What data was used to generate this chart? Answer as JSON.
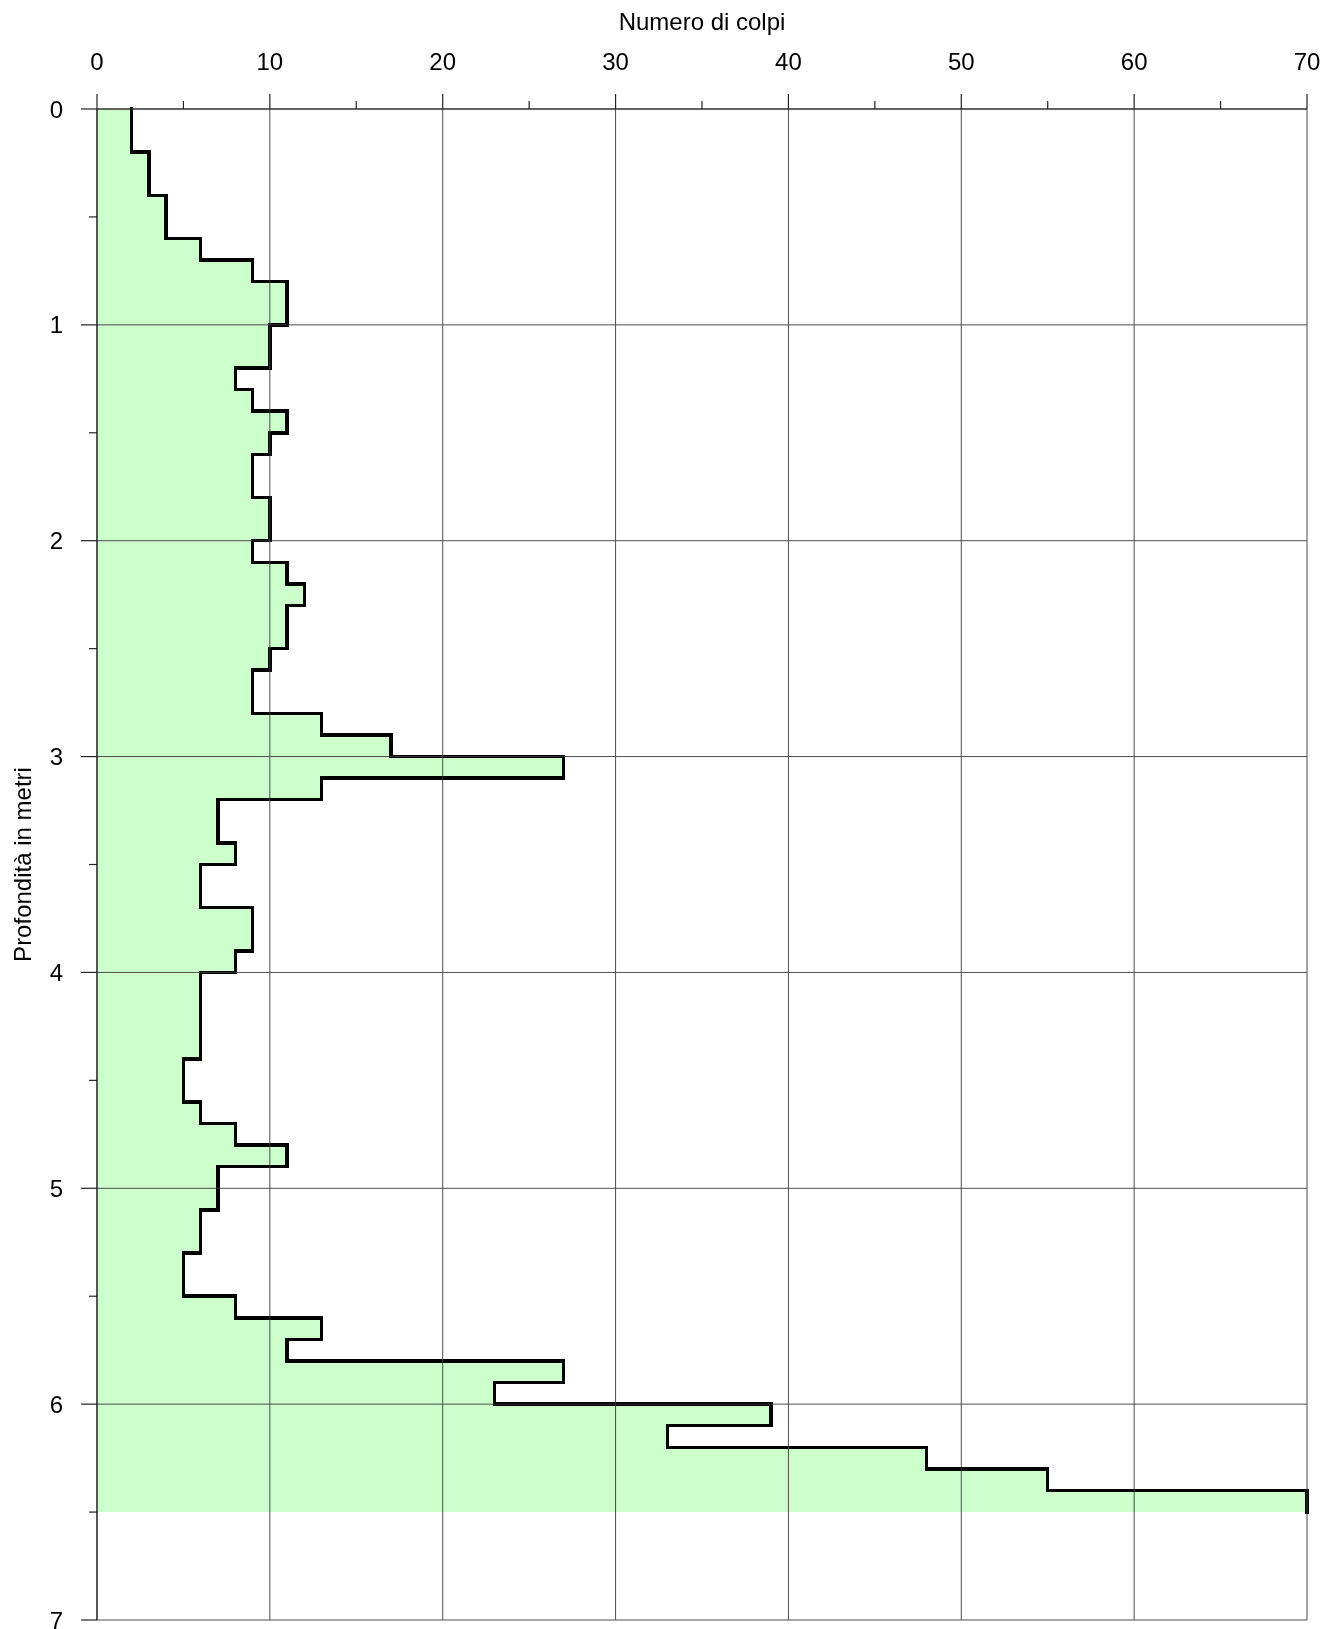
{
  "chart_data": {
    "type": "histogram",
    "orientation": "horizontal",
    "xlabel": "Numero di colpi",
    "ylabel": "Profondità in metri",
    "bins": [
      0,
      0.1,
      0.2,
      0.3,
      0.4,
      0.5,
      0.6,
      0.7,
      0.8,
      0.9,
      1,
      1.1,
      1.2,
      1.3,
      1.4,
      1.5,
      1.6,
      1.7,
      1.8,
      1.9,
      2,
      2.1,
      2.2,
      2.3,
      2.4,
      2.5,
      2.6,
      2.7,
      2.8,
      2.9,
      3,
      3.1,
      3.2,
      3.3,
      3.4,
      3.5,
      3.6,
      3.7,
      3.8,
      3.9,
      4,
      4.1,
      4.2,
      4.3,
      4.4,
      4.5,
      4.6,
      4.7,
      4.8,
      4.9,
      5,
      5.1,
      5.2,
      5.3,
      5.4,
      5.5,
      5.6,
      5.7,
      5.8,
      5.9,
      6,
      6.1,
      6.2,
      6.3,
      6.4,
      6.5
    ],
    "values": [
      2,
      2,
      3,
      3,
      4,
      4,
      6,
      9,
      11,
      11,
      10,
      10,
      8,
      9,
      11,
      10,
      9,
      9,
      10,
      10,
      9,
      11,
      12,
      11,
      11,
      10,
      9,
      9,
      13,
      17,
      27,
      13,
      7,
      7,
      8,
      6,
      6,
      9,
      9,
      8,
      6,
      6,
      6,
      6,
      5,
      5,
      6,
      8,
      11,
      7,
      7,
      6,
      6,
      5,
      5,
      8,
      13,
      11,
      27,
      23,
      39,
      33,
      48,
      55,
      70
    ],
    "color": "#ccffcc",
    "xlim": [
      0,
      70
    ],
    "xticks": [
      0,
      {
        "value": 5,
        "label": null
      },
      10,
      {
        "value": 15,
        "label": null
      },
      20,
      {
        "value": 25,
        "label": null
      },
      30,
      {
        "value": 35,
        "label": null
      },
      40,
      {
        "value": 45,
        "label": null
      },
      50,
      {
        "value": 55,
        "label": null
      },
      60,
      {
        "value": 65,
        "label": null
      },
      70
    ],
    "ylim": [
      7,
      0
    ],
    "yticks": [
      0,
      {
        "value": 0.5,
        "label": null
      },
      1,
      {
        "value": 1.5,
        "label": null
      },
      2,
      {
        "value": 2.5,
        "label": null
      },
      3,
      {
        "value": 3.5,
        "label": null
      },
      4,
      {
        "value": 4.5,
        "label": null
      },
      5,
      {
        "value": 5.5,
        "label": null
      },
      6,
      {
        "value": 6.5,
        "label": null
      },
      7
    ],
    "grid": true
  }
}
